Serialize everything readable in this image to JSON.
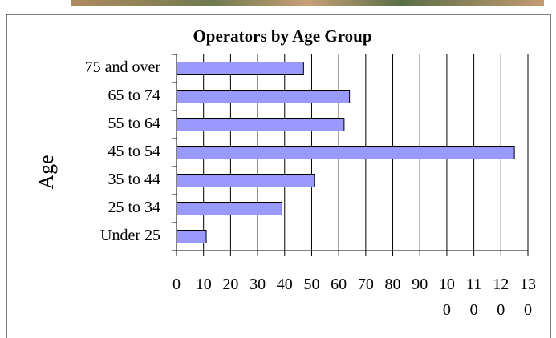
{
  "chart_data": {
    "type": "bar",
    "orientation": "horizontal",
    "title": "Operators by Age Group",
    "y_label": "Age",
    "categories": [
      "Under 25",
      "25 to 34",
      "35 to 44",
      "45 to 54",
      "55 to 64",
      "65 to 74",
      "75 and over"
    ],
    "values": [
      11,
      39,
      51,
      125,
      62,
      64,
      47
    ],
    "color": "#9999ff",
    "xlim": [
      0,
      130
    ],
    "xticks": [
      0,
      10,
      20,
      30,
      40,
      50,
      60,
      70,
      80,
      90,
      100,
      110,
      120,
      130
    ],
    "grid": true
  }
}
